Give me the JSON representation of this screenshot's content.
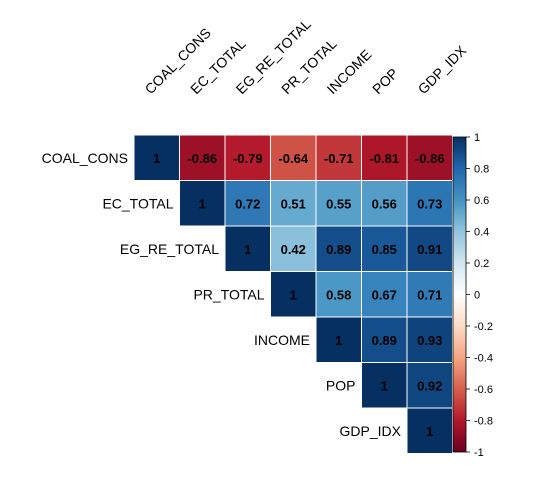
{
  "chart_data": {
    "type": "heatmap",
    "subtype": "correlation-upper-triangle",
    "variables": [
      "COAL_CONS",
      "EC_TOTAL",
      "EG_RE_TOTAL",
      "PR_TOTAL",
      "INCOME",
      "POP",
      "GDP_IDX"
    ],
    "matrix": [
      [
        1,
        -0.86,
        -0.79,
        -0.64,
        -0.71,
        -0.81,
        -0.86
      ],
      [
        null,
        1,
        0.72,
        0.51,
        0.55,
        0.56,
        0.73
      ],
      [
        null,
        null,
        1,
        0.42,
        0.89,
        0.85,
        0.91
      ],
      [
        null,
        null,
        null,
        1,
        0.58,
        0.67,
        0.71
      ],
      [
        null,
        null,
        null,
        null,
        1,
        0.89,
        0.93
      ],
      [
        null,
        null,
        null,
        null,
        null,
        1,
        0.92
      ],
      [
        null,
        null,
        null,
        null,
        null,
        null,
        1
      ]
    ],
    "colorbar": {
      "range": [
        -1,
        1
      ],
      "ticks": [
        "1",
        "0.8",
        "0.6",
        "0.4",
        "0.2",
        "0",
        "-0.2",
        "-0.4",
        "-0.6",
        "-0.8",
        "-1"
      ],
      "tick_values": [
        1,
        0.8,
        0.6,
        0.4,
        0.2,
        0,
        -0.2,
        -0.4,
        -0.6,
        -0.8,
        -1
      ],
      "colors": [
        "#67001F",
        "#B2182B",
        "#D6604D",
        "#F4A582",
        "#FDDBC7",
        "#FFFFFF",
        "#D1E5F0",
        "#92C5DE",
        "#4393C3",
        "#2166AC",
        "#053061"
      ]
    },
    "grid": false,
    "legend": "right"
  }
}
